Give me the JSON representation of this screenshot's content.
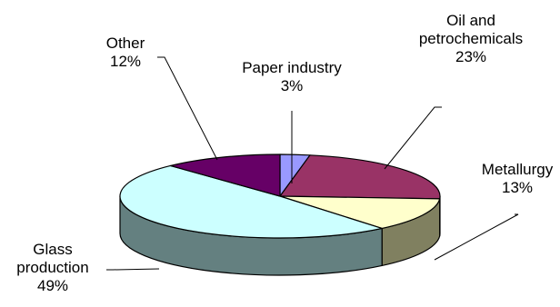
{
  "chart_data": {
    "type": "pie",
    "style": "3d",
    "title": "",
    "slices": [
      {
        "name": "Paper industry",
        "value": 3,
        "percent": "3%",
        "color": "#9999FF",
        "side_color": "#6666CC"
      },
      {
        "name": "Oil and petrochemicals",
        "value": 23,
        "percent": "23%",
        "color": "#993366",
        "side_color": "#6B2447"
      },
      {
        "name": "Metallurgy",
        "value": 13,
        "percent": "13%",
        "color": "#FFFFCC",
        "side_color": "#808060"
      },
      {
        "name": "Glass production",
        "value": 49,
        "percent": "49%",
        "color": "#CCFFFF",
        "side_color": "#648080"
      },
      {
        "name": "Other",
        "value": 12,
        "percent": "12%",
        "color": "#660066",
        "side_color": "#400040"
      }
    ],
    "labels": [
      {
        "lines": [
          "Paper industry",
          "3%"
        ]
      },
      {
        "lines": [
          "Oil and",
          "petrochemicals",
          "23%"
        ]
      },
      {
        "lines": [
          "Metallurgy",
          "13%"
        ]
      },
      {
        "lines": [
          "Glass",
          "production",
          "49%"
        ]
      },
      {
        "lines": [
          "Other",
          "12%"
        ]
      }
    ]
  }
}
